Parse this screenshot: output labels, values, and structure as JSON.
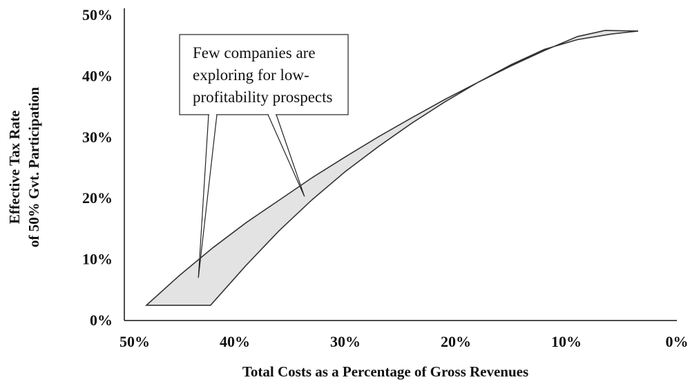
{
  "chart_data": {
    "type": "area",
    "title": "",
    "xlabel": "Total Costs as a Percentage of Gross Revenues",
    "ylabel_lines": [
      "Effective Tax Rate",
      "of 50% Gvt. Participation"
    ],
    "x_ticks": [
      "50%",
      "40%",
      "30%",
      "20%",
      "10%",
      "0%"
    ],
    "y_ticks": [
      "0%",
      "10%",
      "20%",
      "30%",
      "40%",
      "50%"
    ],
    "xlim": [
      50,
      0
    ],
    "ylim": [
      0,
      50
    ],
    "x_reversed": true,
    "grid": false,
    "legend": "none",
    "band_fill": "#e3e3e3",
    "band_stroke": "#333333",
    "series": [
      {
        "x": [
          48,
          45,
          42,
          39,
          36,
          33,
          30,
          27,
          24,
          21,
          18,
          15,
          12,
          9,
          6.5
        ],
        "y": [
          2.5,
          7.4,
          11.9,
          16.0,
          19.7,
          23.4,
          26.8,
          30.1,
          33.2,
          36.2,
          39.0,
          41.7,
          44.2,
          46.5,
          47.5
        ]
      },
      {
        "x": [
          42.2,
          39,
          36,
          33,
          30,
          27,
          24,
          21,
          18,
          15,
          12,
          9,
          6,
          3.5
        ],
        "y": [
          2.5,
          9.0,
          14.7,
          19.8,
          24.4,
          28.5,
          32.3,
          35.8,
          39.0,
          41.9,
          44.4,
          46.0,
          46.9,
          47.4
        ]
      }
    ],
    "annotation": {
      "lines": [
        "Few companies are",
        "exploring for low-",
        "profitability prospects"
      ],
      "pointers": [
        {
          "x": 43.3,
          "y": 7
        },
        {
          "x": 33.7,
          "y": 20.3
        }
      ]
    }
  }
}
